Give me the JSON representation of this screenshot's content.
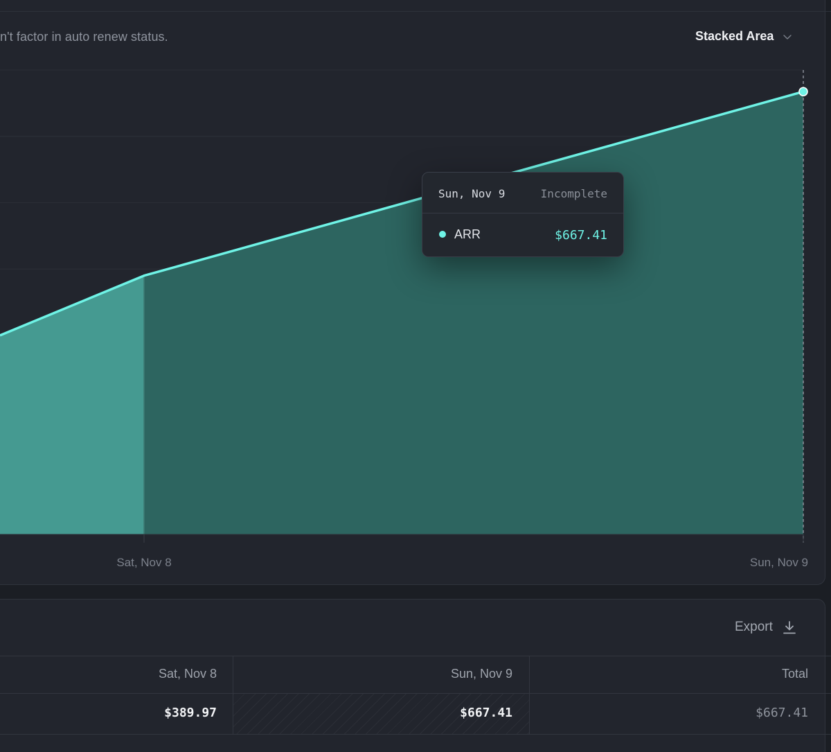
{
  "header": {
    "description": "n't factor in auto renew status.",
    "chart_type_select": "Stacked Area"
  },
  "colors": {
    "accent": "#6ff3e6",
    "area_complete": "#459a91",
    "area_incomplete": "#2d6560",
    "card_bg": "#22252d"
  },
  "chart_data": {
    "type": "area",
    "stacked": true,
    "series": [
      {
        "name": "ARR",
        "values": [
          389.97,
          667.41
        ]
      }
    ],
    "x": [
      "Sat, Nov 8",
      "Sun, Nov 9"
    ],
    "incomplete_from": "Sat, Nov 8",
    "visible_left_value": 300,
    "ylim": [
      0,
      700
    ],
    "grid": true,
    "tooltip": {
      "date": "Sun, Nov 9",
      "status": "Incomplete",
      "series": "ARR",
      "value": "$667.41"
    }
  },
  "table": {
    "export_label": "Export",
    "columns": [
      "Sat, Nov 8",
      "Sun, Nov 9",
      "Total"
    ],
    "rows": [
      {
        "cells": [
          "$389.97",
          "$667.41",
          "$667.41"
        ]
      }
    ]
  }
}
